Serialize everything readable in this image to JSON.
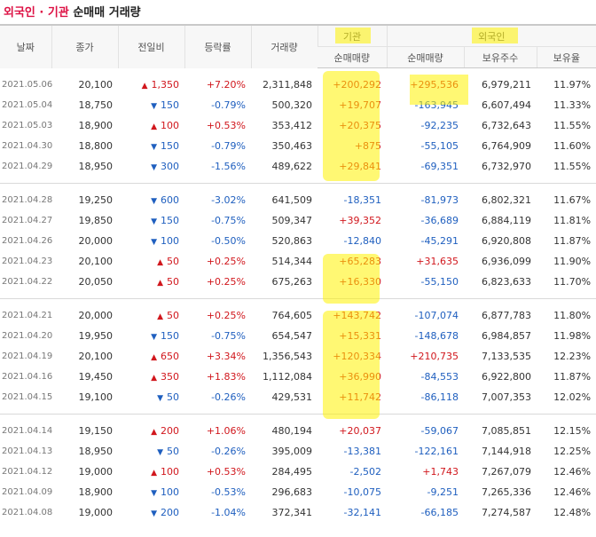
{
  "title": {
    "part1": "외국인 · 기관",
    "part2": "순매매 거래량"
  },
  "headers": {
    "date": "날짜",
    "close": "종가",
    "change": "전일비",
    "rate": "등락률",
    "volume": "거래량",
    "inst_group": "기관",
    "foreign_group": "외국인",
    "inst_net": "순매매량",
    "foreign_net": "순매매량",
    "foreign_shares": "보유주수",
    "foreign_ratio": "보유율"
  },
  "colors": {
    "up": "#d1171d",
    "down": "#1f5fbf",
    "highlight": "#fff200"
  },
  "groups": [
    [
      {
        "date": "2021.05.06",
        "close": "20,100",
        "dir": "up",
        "change": "1,350",
        "rate": "+7.20%",
        "volume": "2,311,848",
        "inst": "+200,292",
        "foreign": "+295,536",
        "shares": "6,979,211",
        "ratio": "11.97%"
      },
      {
        "date": "2021.05.04",
        "close": "18,750",
        "dir": "down",
        "change": "150",
        "rate": "-0.79%",
        "volume": "500,320",
        "inst": "+19,707",
        "foreign": "-163,945",
        "shares": "6,607,494",
        "ratio": "11.33%"
      },
      {
        "date": "2021.05.03",
        "close": "18,900",
        "dir": "up",
        "change": "100",
        "rate": "+0.53%",
        "volume": "353,412",
        "inst": "+20,375",
        "foreign": "-92,235",
        "shares": "6,732,643",
        "ratio": "11.55%"
      },
      {
        "date": "2021.04.30",
        "close": "18,800",
        "dir": "down",
        "change": "150",
        "rate": "-0.79%",
        "volume": "350,463",
        "inst": "+875",
        "foreign": "-55,105",
        "shares": "6,764,909",
        "ratio": "11.60%"
      },
      {
        "date": "2021.04.29",
        "close": "18,950",
        "dir": "down",
        "change": "300",
        "rate": "-1.56%",
        "volume": "489,622",
        "inst": "+29,841",
        "foreign": "-69,351",
        "shares": "6,732,970",
        "ratio": "11.55%"
      }
    ],
    [
      {
        "date": "2021.04.28",
        "close": "19,250",
        "dir": "down",
        "change": "600",
        "rate": "-3.02%",
        "volume": "641,509",
        "inst": "-18,351",
        "foreign": "-81,973",
        "shares": "6,802,321",
        "ratio": "11.67%"
      },
      {
        "date": "2021.04.27",
        "close": "19,850",
        "dir": "down",
        "change": "150",
        "rate": "-0.75%",
        "volume": "509,347",
        "inst": "+39,352",
        "foreign": "-36,689",
        "shares": "6,884,119",
        "ratio": "11.81%"
      },
      {
        "date": "2021.04.26",
        "close": "20,000",
        "dir": "down",
        "change": "100",
        "rate": "-0.50%",
        "volume": "520,863",
        "inst": "-12,840",
        "foreign": "-45,291",
        "shares": "6,920,808",
        "ratio": "11.87%"
      },
      {
        "date": "2021.04.23",
        "close": "20,100",
        "dir": "up",
        "change": "50",
        "rate": "+0.25%",
        "volume": "514,344",
        "inst": "+65,283",
        "foreign": "+31,635",
        "shares": "6,936,099",
        "ratio": "11.90%"
      },
      {
        "date": "2021.04.22",
        "close": "20,050",
        "dir": "up",
        "change": "50",
        "rate": "+0.25%",
        "volume": "675,263",
        "inst": "+16,330",
        "foreign": "-55,150",
        "shares": "6,823,633",
        "ratio": "11.70%"
      }
    ],
    [
      {
        "date": "2021.04.21",
        "close": "20,000",
        "dir": "up",
        "change": "50",
        "rate": "+0.25%",
        "volume": "764,605",
        "inst": "+143,742",
        "foreign": "-107,074",
        "shares": "6,877,783",
        "ratio": "11.80%"
      },
      {
        "date": "2021.04.20",
        "close": "19,950",
        "dir": "down",
        "change": "150",
        "rate": "-0.75%",
        "volume": "654,547",
        "inst": "+15,331",
        "foreign": "-148,678",
        "shares": "6,984,857",
        "ratio": "11.98%"
      },
      {
        "date": "2021.04.19",
        "close": "20,100",
        "dir": "up",
        "change": "650",
        "rate": "+3.34%",
        "volume": "1,356,543",
        "inst": "+120,334",
        "foreign": "+210,735",
        "shares": "7,133,535",
        "ratio": "12.23%"
      },
      {
        "date": "2021.04.16",
        "close": "19,450",
        "dir": "up",
        "change": "350",
        "rate": "+1.83%",
        "volume": "1,112,084",
        "inst": "+36,990",
        "foreign": "-84,553",
        "shares": "6,922,800",
        "ratio": "11.87%"
      },
      {
        "date": "2021.04.15",
        "close": "19,100",
        "dir": "down",
        "change": "50",
        "rate": "-0.26%",
        "volume": "429,531",
        "inst": "+11,742",
        "foreign": "-86,118",
        "shares": "7,007,353",
        "ratio": "12.02%"
      }
    ],
    [
      {
        "date": "2021.04.14",
        "close": "19,150",
        "dir": "up",
        "change": "200",
        "rate": "+1.06%",
        "volume": "480,194",
        "inst": "+20,037",
        "foreign": "-59,067",
        "shares": "7,085,851",
        "ratio": "12.15%"
      },
      {
        "date": "2021.04.13",
        "close": "18,950",
        "dir": "down",
        "change": "50",
        "rate": "-0.26%",
        "volume": "395,009",
        "inst": "-13,381",
        "foreign": "-122,161",
        "shares": "7,144,918",
        "ratio": "12.25%"
      },
      {
        "date": "2021.04.12",
        "close": "19,000",
        "dir": "up",
        "change": "100",
        "rate": "+0.53%",
        "volume": "284,495",
        "inst": "-2,502",
        "foreign": "+1,743",
        "shares": "7,267,079",
        "ratio": "12.46%"
      },
      {
        "date": "2021.04.09",
        "close": "18,900",
        "dir": "down",
        "change": "100",
        "rate": "-0.53%",
        "volume": "296,683",
        "inst": "-10,075",
        "foreign": "-9,251",
        "shares": "7,265,336",
        "ratio": "12.46%"
      },
      {
        "date": "2021.04.08",
        "close": "19,000",
        "dir": "down",
        "change": "200",
        "rate": "-1.04%",
        "volume": "372,341",
        "inst": "-32,141",
        "foreign": "-66,185",
        "shares": "7,274,587",
        "ratio": "12.48%"
      }
    ]
  ]
}
